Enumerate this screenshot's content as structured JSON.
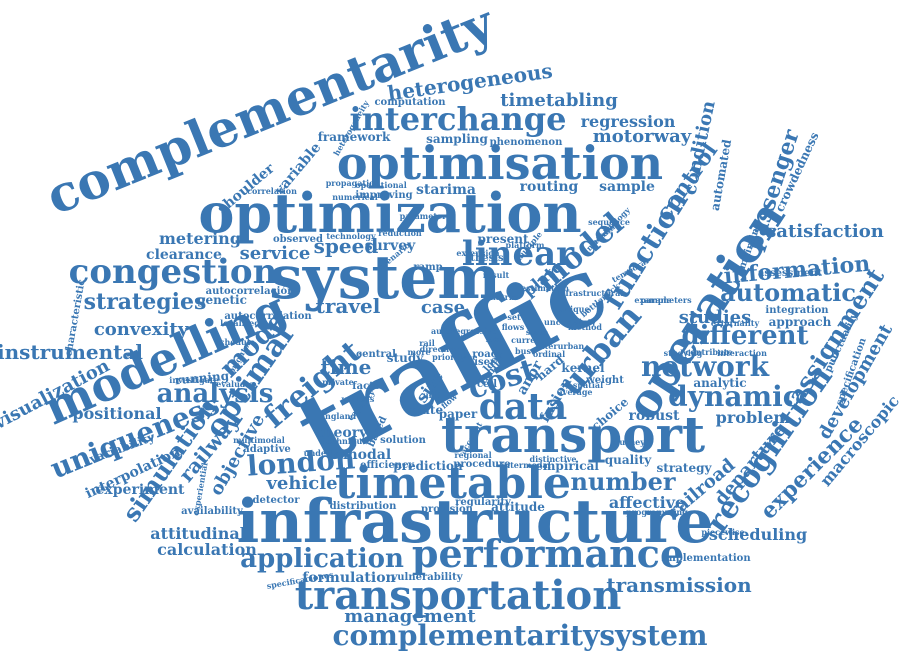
{
  "color": "#3a77b3",
  "words": [
    {
      "text": "traffic"
    },
    {
      "text": "infrastructure"
    },
    {
      "text": "complementarity"
    },
    {
      "text": "optimization"
    },
    {
      "text": "optimisation"
    },
    {
      "text": "system"
    },
    {
      "text": "transport"
    },
    {
      "text": "operation"
    },
    {
      "text": "modelling"
    },
    {
      "text": "timetable"
    },
    {
      "text": "performance"
    },
    {
      "text": "transportation"
    },
    {
      "text": "complementaritysystem"
    },
    {
      "text": "interchange"
    },
    {
      "text": "congestion"
    },
    {
      "text": "urban"
    },
    {
      "text": "linear"
    },
    {
      "text": "recognition"
    },
    {
      "text": "network"
    },
    {
      "text": "dynamic"
    },
    {
      "text": "data"
    },
    {
      "text": "heterogeneous"
    },
    {
      "text": "assignment"
    },
    {
      "text": "function"
    },
    {
      "text": "information"
    },
    {
      "text": "uniqueness"
    },
    {
      "text": "application"
    },
    {
      "text": "london"
    },
    {
      "text": "freight"
    },
    {
      "text": "simulation"
    },
    {
      "text": "model"
    },
    {
      "text": "different"
    },
    {
      "text": "number"
    },
    {
      "text": "optimal"
    },
    {
      "text": "automatic"
    },
    {
      "text": "analysis"
    },
    {
      "text": "control"
    },
    {
      "text": "timetabling"
    },
    {
      "text": "instrumental"
    },
    {
      "text": "strategies"
    },
    {
      "text": "convexity"
    },
    {
      "text": "motorway"
    },
    {
      "text": "regression"
    },
    {
      "text": "speed"
    },
    {
      "text": "service"
    },
    {
      "text": "travel"
    },
    {
      "text": "cost"
    },
    {
      "text": "studies"
    },
    {
      "text": "satisfaction"
    },
    {
      "text": "passenger"
    },
    {
      "text": "condition"
    },
    {
      "text": "scheduling"
    },
    {
      "text": "transmission"
    },
    {
      "text": "management"
    },
    {
      "text": "experience"
    },
    {
      "text": "departure"
    },
    {
      "text": "railroad"
    },
    {
      "text": "development"
    },
    {
      "text": "macroscopic"
    },
    {
      "text": "railway"
    },
    {
      "text": "objective"
    },
    {
      "text": "visualization"
    },
    {
      "text": "vehicle"
    },
    {
      "text": "calculation"
    },
    {
      "text": "attitudinal"
    },
    {
      "text": "formulation"
    },
    {
      "text": "metering"
    },
    {
      "text": "clearance"
    },
    {
      "text": "time"
    },
    {
      "text": "mode"
    },
    {
      "text": "case"
    },
    {
      "text": "survey"
    },
    {
      "text": "modal"
    },
    {
      "text": "theory"
    },
    {
      "text": "problem"
    },
    {
      "text": "plate"
    },
    {
      "text": "positional"
    },
    {
      "text": "shoulder"
    },
    {
      "text": "variable"
    },
    {
      "text": "sample"
    },
    {
      "text": "starima"
    },
    {
      "text": "routing"
    },
    {
      "text": "affective"
    },
    {
      "text": "robust"
    },
    {
      "text": "quality"
    },
    {
      "text": "strategy"
    },
    {
      "text": "anpr"
    },
    {
      "text": "fusion"
    },
    {
      "text": "size"
    },
    {
      "text": "framework"
    },
    {
      "text": "sampling"
    },
    {
      "text": "automated"
    },
    {
      "text": "crowdedness"
    },
    {
      "text": "analytic"
    },
    {
      "text": "approach"
    },
    {
      "text": "integration"
    },
    {
      "text": "empirical"
    },
    {
      "text": "paper"
    },
    {
      "text": "attitude"
    },
    {
      "text": "vulnerability"
    },
    {
      "text": "prediction"
    },
    {
      "text": "efficiency"
    },
    {
      "text": "availability"
    },
    {
      "text": "experiment"
    },
    {
      "text": "interpolation"
    },
    {
      "text": "variability"
    },
    {
      "text": "genetic"
    },
    {
      "text": "running"
    },
    {
      "text": "detector"
    },
    {
      "text": "computation"
    },
    {
      "text": "phenomenon"
    },
    {
      "text": "improving"
    },
    {
      "text": "present"
    },
    {
      "text": "kernel"
    },
    {
      "text": "choice"
    },
    {
      "text": "distribution"
    },
    {
      "text": "provision"
    },
    {
      "text": "implementation"
    },
    {
      "text": "procedure"
    },
    {
      "text": "specificaciones"
    },
    {
      "text": "route"
    },
    {
      "text": "study"
    },
    {
      "text": "factor"
    },
    {
      "text": "punctuality"
    },
    {
      "text": "mainline"
    },
    {
      "text": "specification"
    },
    {
      "text": "autocorrelation"
    },
    {
      "text": "autocorrelación"
    },
    {
      "text": "characteristic"
    },
    {
      "text": "observed"
    },
    {
      "text": "adaptive"
    },
    {
      "text": "solution"
    },
    {
      "text": "central"
    },
    {
      "text": "assessment"
    },
    {
      "text": "weight"
    },
    {
      "text": "hard"
    },
    {
      "text": "regularity"
    },
    {
      "text": "piecewise"
    },
    {
      "text": "programming"
    },
    {
      "text": "journey"
    },
    {
      "text": "studying"
    },
    {
      "text": "contribute"
    },
    {
      "text": "thesis"
    },
    {
      "text": "operational"
    },
    {
      "text": "heterogeneity"
    },
    {
      "text": "numerical"
    },
    {
      "text": "technology"
    },
    {
      "text": "scenario"
    },
    {
      "text": "ramp"
    },
    {
      "text": "road"
    },
    {
      "text": "user"
    },
    {
      "text": "limit"
    },
    {
      "text": "loop"
    },
    {
      "text": "cell"
    },
    {
      "text": "result"
    },
    {
      "text": "matrix"
    },
    {
      "text": "platform"
    },
    {
      "text": "multiple"
    },
    {
      "text": "temporal"
    },
    {
      "text": "methodology"
    },
    {
      "text": "holding"
    },
    {
      "text": "sequence"
    },
    {
      "text": "parameters"
    },
    {
      "text": "externality"
    },
    {
      "text": "interaction"
    },
    {
      "text": "example"
    },
    {
      "text": "spatial"
    },
    {
      "text": "based"
    },
    {
      "text": "various"
    },
    {
      "text": "england"
    },
    {
      "text": "private"
    },
    {
      "text": "capacity"
    },
    {
      "text": "underlying"
    },
    {
      "text": "experiential"
    },
    {
      "text": "brighton"
    },
    {
      "text": "investigate"
    },
    {
      "text": "evaluate"
    },
    {
      "text": "multimodal"
    },
    {
      "text": "technique"
    },
    {
      "text": "account"
    },
    {
      "text": "regional"
    },
    {
      "text": "intermodal"
    },
    {
      "text": "distinctive"
    },
    {
      "text": "localised"
    },
    {
      "text": "extension"
    },
    {
      "text": "correlation"
    },
    {
      "text": "reduction"
    },
    {
      "text": "propagation"
    },
    {
      "text": "parameter"
    },
    {
      "text": "more"
    },
    {
      "text": "rail"
    },
    {
      "text": "fast"
    },
    {
      "text": "line"
    },
    {
      "text": "unit"
    },
    {
      "text": "state"
    },
    {
      "text": "flow"
    },
    {
      "text": "bus"
    },
    {
      "text": "set"
    },
    {
      "text": "schedule"
    },
    {
      "text": "current"
    },
    {
      "text": "flows"
    },
    {
      "text": "estimation"
    },
    {
      "text": "infrastructural"
    },
    {
      "text": "bottleneck"
    },
    {
      "text": "interurban"
    },
    {
      "text": "uncertainty"
    },
    {
      "text": "unique"
    },
    {
      "text": "autoregressive"
    },
    {
      "text": "ordinal"
    },
    {
      "text": "direction"
    },
    {
      "text": "priority"
    },
    {
      "text": "average"
    },
    {
      "text": "method"
    }
  ]
}
